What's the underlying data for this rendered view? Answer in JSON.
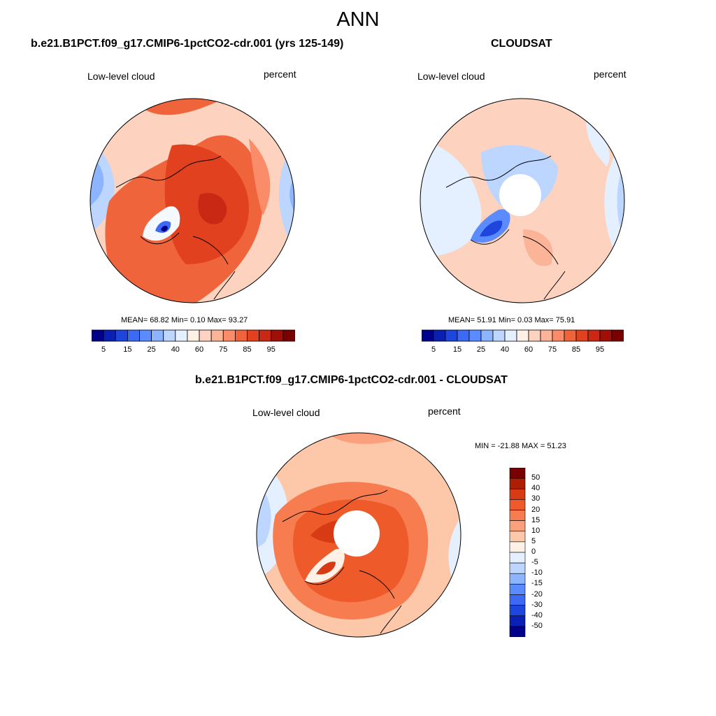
{
  "title": "ANN",
  "panels": [
    {
      "id": "model",
      "title": "b.e21.B1PCT.f09_g17.CMIP6-1pctCO2-cdr.001 (yrs 125-149)",
      "left_label": "Low-level cloud",
      "right_label": "percent",
      "stats": "MEAN=  68.82  Min=   0.10  Max=  93.27",
      "colorbar_ticks": [
        "5",
        "15",
        "25",
        "40",
        "60",
        "75",
        "85",
        "95"
      ]
    },
    {
      "id": "obs",
      "title": "CLOUDSAT",
      "left_label": "Low-level cloud",
      "right_label": "percent",
      "stats": "MEAN=  51.91  Min=   0.03  Max=  75.91",
      "colorbar_ticks": [
        "5",
        "15",
        "25",
        "40",
        "60",
        "75",
        "85",
        "95"
      ]
    },
    {
      "id": "diff",
      "title": "b.e21.B1PCT.f09_g17.CMIP6-1pctCO2-cdr.001 - CLOUDSAT",
      "left_label": "Low-level cloud",
      "right_label": "percent",
      "stats": "MIN = -21.88 MAX =  51.23",
      "colorbar_ticks": [
        "50",
        "40",
        "30",
        "20",
        "15",
        "10",
        "5",
        "0",
        "-5",
        "-10",
        "-15",
        "-20",
        "-30",
        "-40",
        "-50"
      ]
    }
  ],
  "colors": {
    "abs_scale": [
      "#00008c",
      "#0a1fb4",
      "#1e46dc",
      "#3c6af5",
      "#5a8cff",
      "#8cb4ff",
      "#bcd6ff",
      "#e4efff",
      "#fff0e6",
      "#fdd3bf",
      "#fcb498",
      "#fa8c6a",
      "#f0643c",
      "#e1411e",
      "#c82814",
      "#a00f05",
      "#780000"
    ],
    "diff_scale": [
      "#780000",
      "#ad1f04",
      "#d73b14",
      "#ee5a2a",
      "#f77c50",
      "#fba07c",
      "#fdc8aa",
      "#fff1e6",
      "#e4efff",
      "#bcd6ff",
      "#8cb4ff",
      "#5a8cff",
      "#3c6af5",
      "#1e46dc",
      "#0a1fb4",
      "#00008c"
    ]
  }
}
